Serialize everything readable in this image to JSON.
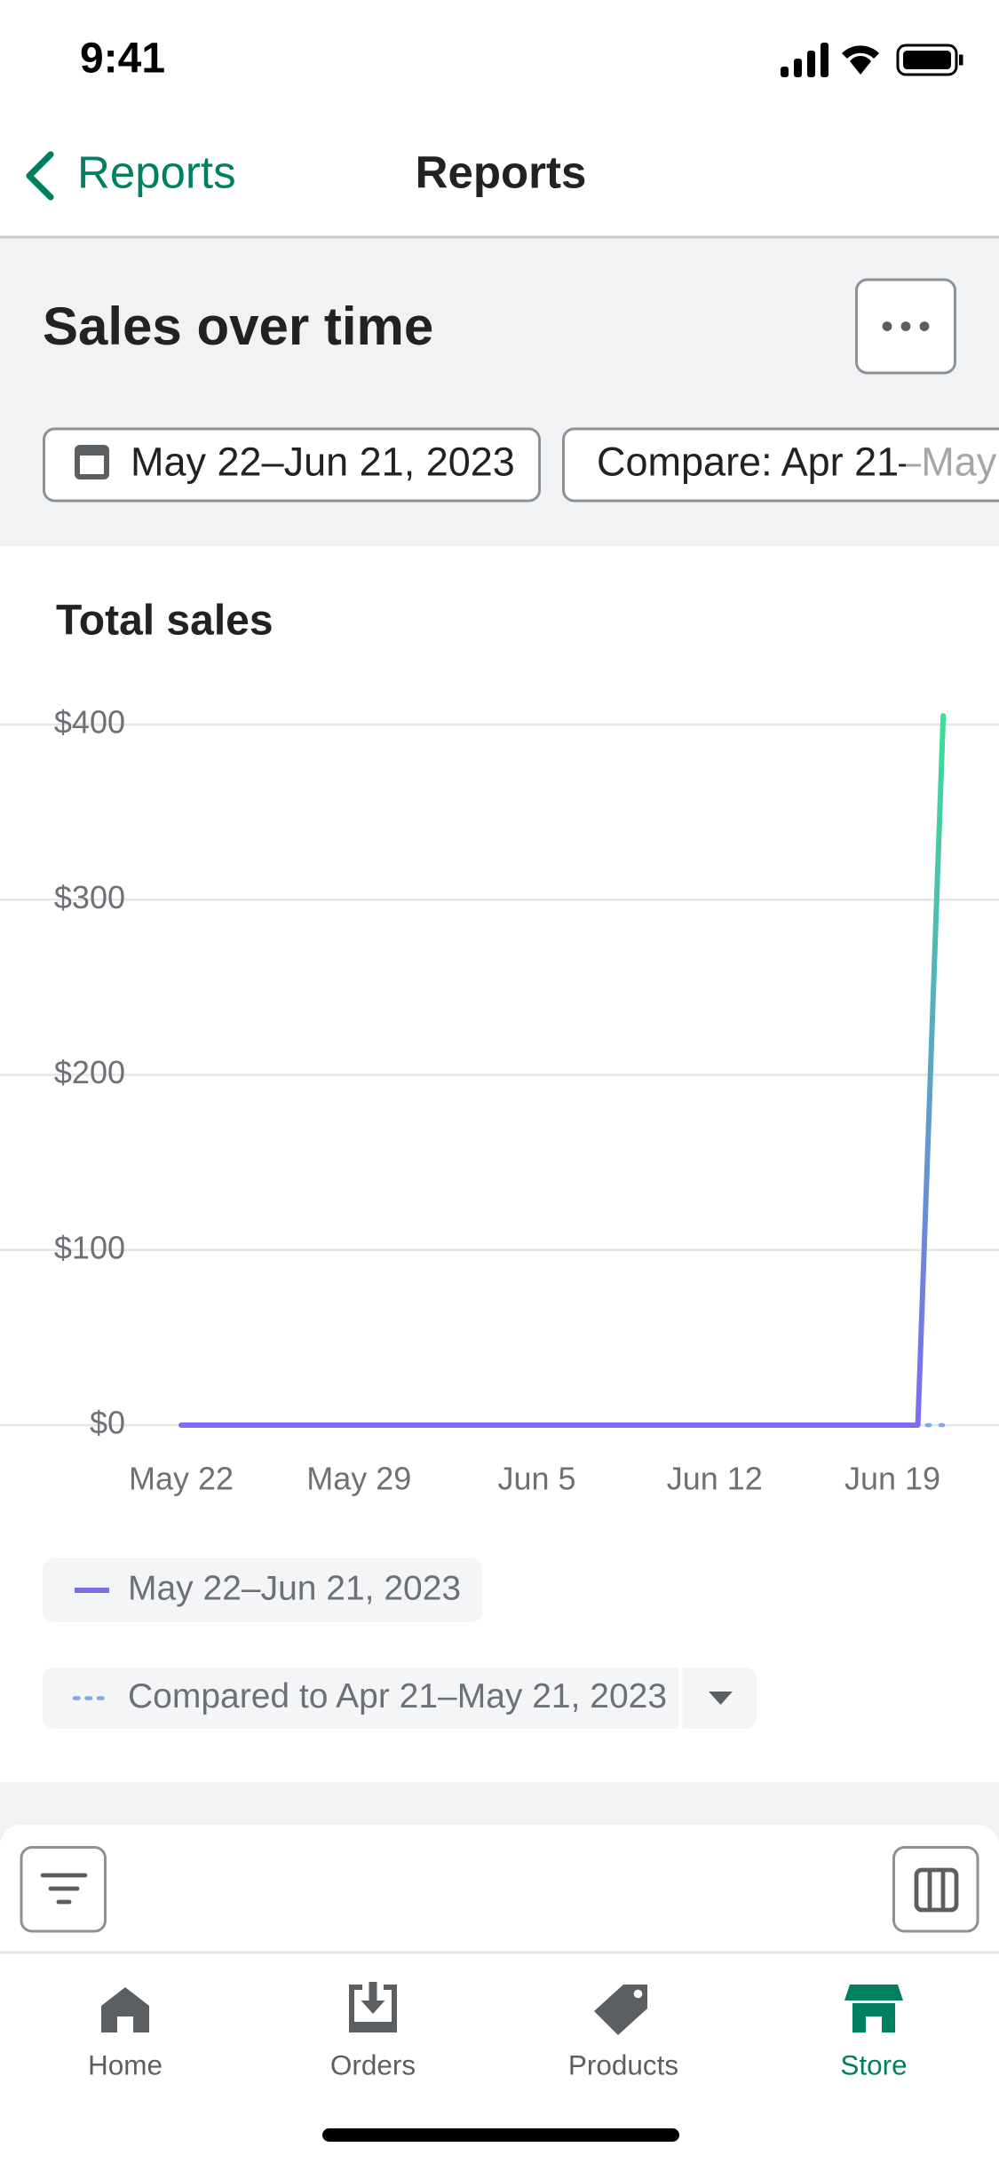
{
  "status_bar": {
    "time": "9:41"
  },
  "nav": {
    "back": "Reports",
    "title": "Reports"
  },
  "header": {
    "title": "Sales over time",
    "date_range": "May 22–Jun 21, 2023",
    "compare": "Compare: Apr 21–May"
  },
  "chart_data": {
    "type": "line",
    "title": "Total sales",
    "x": [
      "May 22",
      "May 23",
      "May 24",
      "May 25",
      "May 26",
      "May 27",
      "May 28",
      "May 29",
      "May 30",
      "May 31",
      "Jun 1",
      "Jun 2",
      "Jun 3",
      "Jun 4",
      "Jun 5",
      "Jun 6",
      "Jun 7",
      "Jun 8",
      "Jun 9",
      "Jun 10",
      "Jun 11",
      "Jun 12",
      "Jun 13",
      "Jun 14",
      "Jun 15",
      "Jun 16",
      "Jun 17",
      "Jun 18",
      "Jun 19",
      "Jun 20",
      "Jun 21"
    ],
    "xticks": [
      "May 22",
      "May 29",
      "Jun 5",
      "Jun 12",
      "Jun 19"
    ],
    "ylim": [
      0,
      400
    ],
    "yticks": [
      {
        "value": 0,
        "label": "$0"
      },
      {
        "value": 100,
        "label": "$100"
      },
      {
        "value": 200,
        "label": "$200"
      },
      {
        "value": 300,
        "label": "$300"
      },
      {
        "value": 400,
        "label": "$400"
      }
    ],
    "grid": true,
    "series": [
      {
        "name": "May 22–Jun 21, 2023",
        "color": "#7b6cf0",
        "values": [
          0,
          0,
          0,
          0,
          0,
          0,
          0,
          0,
          0,
          0,
          0,
          0,
          0,
          0,
          0,
          0,
          0,
          0,
          0,
          0,
          0,
          0,
          0,
          0,
          0,
          0,
          0,
          0,
          0,
          0,
          405
        ]
      },
      {
        "name": "Compared to Apr 21–May 21, 2023",
        "color": "#7fa9e8",
        "values": [
          0,
          0,
          0,
          0,
          0,
          0,
          0,
          0,
          0,
          0,
          0,
          0,
          0,
          0,
          0,
          0,
          0,
          0,
          0,
          0,
          0,
          0,
          0,
          0,
          0,
          0,
          0,
          0,
          0,
          0,
          0
        ]
      }
    ]
  },
  "tabs": [
    "Home",
    "Orders",
    "Products",
    "Store"
  ]
}
